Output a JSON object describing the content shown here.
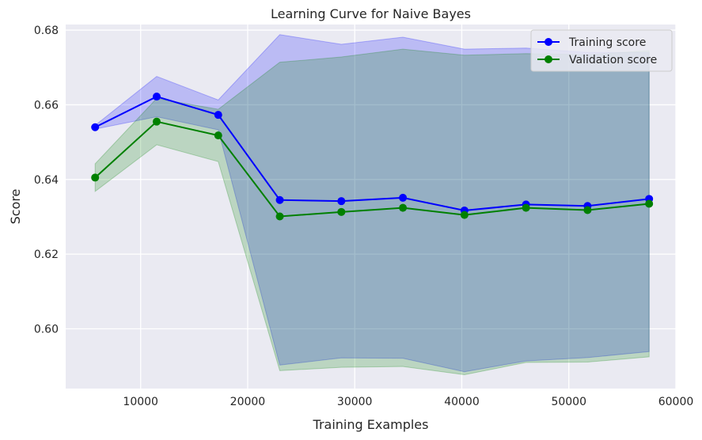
{
  "chart_data": {
    "type": "line",
    "title": "Learning Curve for Naive Bayes",
    "xlabel": "Training Examples",
    "ylabel": "Score",
    "xlim": [
      3000,
      60000
    ],
    "ylim": [
      0.584,
      0.6815
    ],
    "xticks": [
      10000,
      20000,
      30000,
      40000,
      50000,
      60000
    ],
    "xtick_labels": [
      "10000",
      "20000",
      "30000",
      "40000",
      "50000",
      "60000"
    ],
    "yticks": [
      0.6,
      0.62,
      0.64,
      0.66,
      0.68
    ],
    "ytick_labels": [
      "0.60",
      "0.62",
      "0.64",
      "0.66",
      "0.68"
    ],
    "grid": true,
    "legend_position": "top-right",
    "x": [
      5750,
      11500,
      17250,
      23000,
      28750,
      34500,
      40250,
      46000,
      51750,
      57500
    ],
    "series": [
      {
        "name": "Training score",
        "color": "#0000ff",
        "band_color": "#0000ff",
        "values": [
          0.654,
          0.6622,
          0.6573,
          0.6345,
          0.6342,
          0.6351,
          0.6317,
          0.6333,
          0.6329,
          0.6348
        ],
        "upper": [
          0.6545,
          0.6676,
          0.6613,
          0.6788,
          0.6762,
          0.6781,
          0.6749,
          0.6752,
          0.674,
          0.674
        ],
        "lower": [
          0.6535,
          0.6568,
          0.6533,
          0.5903,
          0.5922,
          0.5921,
          0.5885,
          0.5914,
          0.5923,
          0.5939
        ]
      },
      {
        "name": "Validation score",
        "color": "#008000",
        "band_color": "#008000",
        "values": [
          0.6405,
          0.6555,
          0.6518,
          0.6301,
          0.6313,
          0.6324,
          0.6305,
          0.6324,
          0.6318,
          0.6335
        ],
        "upper": [
          0.6442,
          0.6617,
          0.6588,
          0.6714,
          0.6728,
          0.6749,
          0.6733,
          0.6737,
          0.6734,
          0.6745
        ],
        "lower": [
          0.6368,
          0.6493,
          0.6448,
          0.5888,
          0.5897,
          0.5899,
          0.5877,
          0.591,
          0.5911,
          0.5925
        ]
      }
    ],
    "style": {
      "plot_background": "#eaeaf2",
      "grid_color": "#ffffff"
    }
  }
}
